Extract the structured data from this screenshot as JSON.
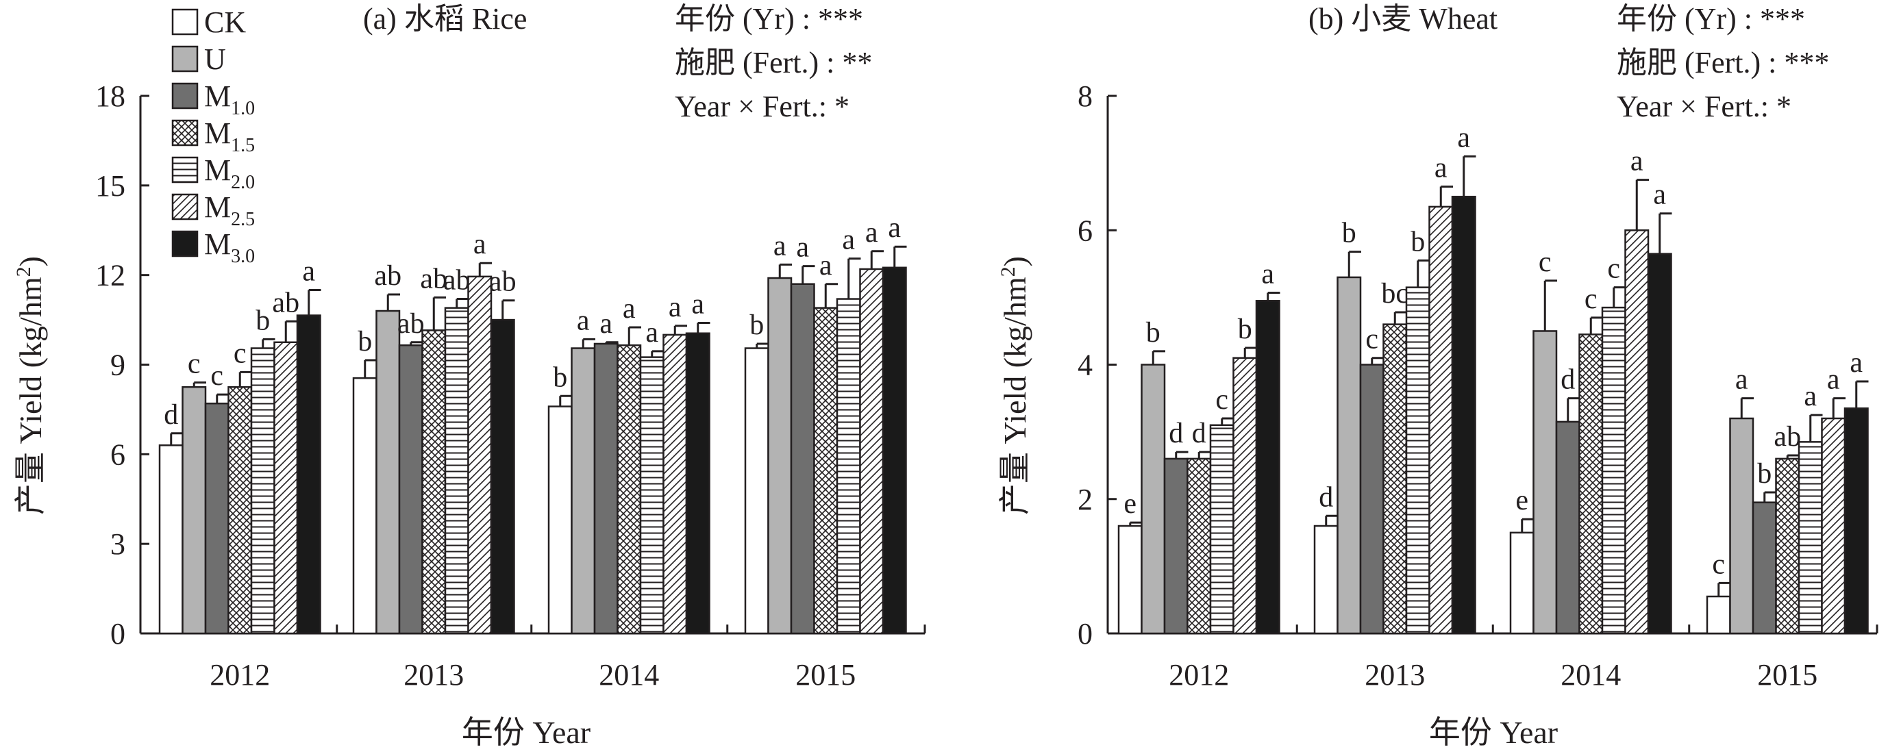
{
  "colors": {
    "axis": "#231f20",
    "CK": "#ffffff",
    "U": "#b3b3b3",
    "M1.0": "#6f6f6f",
    "M3.0": "#1a1a1a"
  },
  "legend": [
    {
      "key": "CK",
      "base": "CK",
      "sub": "",
      "fill": "white"
    },
    {
      "key": "U",
      "base": "U",
      "sub": "",
      "fill": "lightgray"
    },
    {
      "key": "M1.0",
      "base": "M",
      "sub": "1.0",
      "fill": "darkgray"
    },
    {
      "key": "M1.5",
      "base": "M",
      "sub": "1.5",
      "fill": "crosshatch"
    },
    {
      "key": "M2.0",
      "base": "M",
      "sub": "2.0",
      "fill": "horizontal-lines"
    },
    {
      "key": "M2.5",
      "base": "M",
      "sub": "2.5",
      "fill": "diagonal-lines"
    },
    {
      "key": "M3.0",
      "base": "M",
      "sub": "3.0",
      "fill": "black"
    }
  ],
  "chart_data": [
    {
      "type": "bar",
      "title": "(a) 水稻 Rice",
      "xlabel": "年份 Year",
      "ylabel_prefix": "产量 Yield (kg/hm",
      "ylabel_sup": "2",
      "ylabel_suffix": ")",
      "ylim": [
        0,
        18
      ],
      "yticks": [
        "0",
        "3",
        "6",
        "9",
        "12",
        "15",
        "18"
      ],
      "categories": [
        "2012",
        "2013",
        "2014",
        "2015"
      ],
      "stats": [
        "年份 (Yr) : ***",
        "施肥 (Fert.) : **",
        "Year × Fert.: *"
      ],
      "series": [
        {
          "name": "CK",
          "values": [
            6.3,
            8.55,
            7.6,
            9.55
          ],
          "errors": [
            0.4,
            0.6,
            0.35,
            0.15
          ],
          "letters": [
            "d",
            "b",
            "b",
            "b"
          ]
        },
        {
          "name": "U",
          "values": [
            8.25,
            10.8,
            9.55,
            11.9
          ],
          "errors": [
            0.15,
            0.55,
            0.3,
            0.45
          ],
          "letters": [
            "c",
            "ab",
            "a",
            "a"
          ]
        },
        {
          "name": "M1.0",
          "values": [
            7.7,
            9.65,
            9.7,
            11.7
          ],
          "errors": [
            0.3,
            0.1,
            0.05,
            0.6
          ],
          "letters": [
            "c",
            "ab",
            "a",
            "a"
          ]
        },
        {
          "name": "M1.5",
          "values": [
            8.25,
            10.15,
            9.65,
            10.9
          ],
          "errors": [
            0.5,
            1.1,
            0.6,
            0.8
          ],
          "letters": [
            "c",
            "ab",
            "a",
            "a"
          ]
        },
        {
          "name": "M2.0",
          "values": [
            9.55,
            10.9,
            9.25,
            11.2
          ],
          "errors": [
            0.3,
            0.3,
            0.2,
            1.35
          ],
          "letters": [
            "b",
            "ab",
            "a",
            "a"
          ]
        },
        {
          "name": "M2.5",
          "values": [
            9.75,
            11.95,
            10.0,
            12.2
          ],
          "errors": [
            0.7,
            0.45,
            0.3,
            0.6
          ],
          "letters": [
            "ab",
            "a",
            "a",
            "a"
          ]
        },
        {
          "name": "M3.0",
          "values": [
            10.65,
            10.5,
            10.05,
            12.25
          ],
          "errors": [
            0.85,
            0.65,
            0.35,
            0.7
          ],
          "letters": [
            "a",
            "ab",
            "a",
            "a"
          ]
        }
      ]
    },
    {
      "type": "bar",
      "title": "(b) 小麦 Wheat",
      "xlabel": "年份 Year",
      "ylabel_prefix": "产量 Yield (kg/hm",
      "ylabel_sup": "2",
      "ylabel_suffix": ")",
      "ylim": [
        0,
        8
      ],
      "yticks": [
        "0",
        "2",
        "4",
        "6",
        "8"
      ],
      "categories": [
        "2012",
        "2013",
        "2014",
        "2015"
      ],
      "stats": [
        "年份 (Yr) : ***",
        "施肥 (Fert.) : ***",
        "Year × Fert.: *"
      ],
      "series": [
        {
          "name": "CK",
          "values": [
            1.6,
            1.6,
            1.5,
            0.55
          ],
          "errors": [
            0.05,
            0.15,
            0.2,
            0.2
          ],
          "letters": [
            "e",
            "d",
            "e",
            "c"
          ]
        },
        {
          "name": "U",
          "values": [
            4.0,
            5.3,
            4.5,
            3.2
          ],
          "errors": [
            0.2,
            0.38,
            0.75,
            0.3
          ],
          "letters": [
            "b",
            "b",
            "c",
            "a"
          ]
        },
        {
          "name": "M1.0",
          "values": [
            2.6,
            4.0,
            3.15,
            1.95
          ],
          "errors": [
            0.1,
            0.1,
            0.35,
            0.15
          ],
          "letters": [
            "d",
            "c",
            "d",
            "b"
          ]
        },
        {
          "name": "M1.5",
          "values": [
            2.6,
            4.6,
            4.45,
            2.6
          ],
          "errors": [
            0.1,
            0.18,
            0.25,
            0.05
          ],
          "letters": [
            "d",
            "bc",
            "c",
            "ab"
          ]
        },
        {
          "name": "M2.0",
          "values": [
            3.1,
            5.15,
            4.85,
            2.85
          ],
          "errors": [
            0.1,
            0.4,
            0.3,
            0.4
          ],
          "letters": [
            "c",
            "b",
            "c",
            "a"
          ]
        },
        {
          "name": "M2.5",
          "values": [
            4.1,
            6.35,
            6.0,
            3.2
          ],
          "errors": [
            0.15,
            0.3,
            0.75,
            0.3
          ],
          "letters": [
            "b",
            "a",
            "a",
            "a"
          ]
        },
        {
          "name": "M3.0",
          "values": [
            4.95,
            6.5,
            5.65,
            3.35
          ],
          "errors": [
            0.12,
            0.6,
            0.6,
            0.4
          ],
          "letters": [
            "a",
            "a",
            "a",
            "a"
          ]
        }
      ]
    }
  ]
}
